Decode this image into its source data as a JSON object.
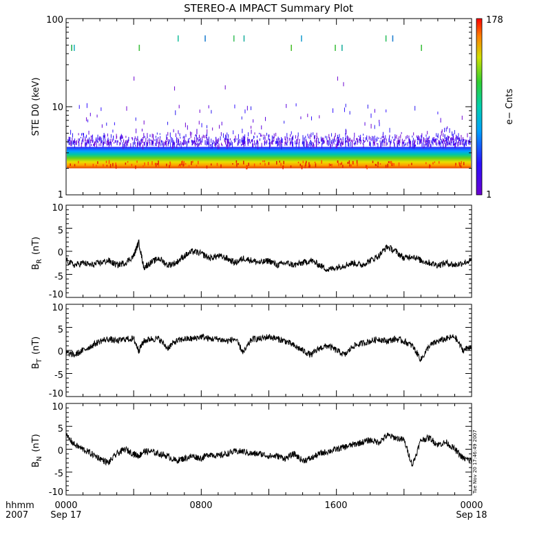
{
  "title": "STEREO-A IMPACT Summary Plot",
  "footer": {
    "format_label": "hhmm",
    "year_label": "2007",
    "stamp": "Tue Nov 20 17:46:49 2007"
  },
  "chart_data": [
    {
      "type": "heatmap",
      "name": "ste-spectrogram",
      "ylabel": "STE D0 (keV)",
      "yscale": "log",
      "ylim": [
        1,
        100
      ],
      "yticks": [
        "1",
        "10",
        "100"
      ],
      "colorbar": {
        "label": "e− Cnts",
        "max_label": "178",
        "min_label": "1",
        "min": 1,
        "max": 178
      },
      "xlim_hours": [
        0,
        24
      ],
      "band_keV": [
        2,
        3.5
      ],
      "sporadic_counts_keV": [
        4,
        11
      ],
      "high_energy_spikes": [
        {
          "hour": 0.3,
          "keV": 47,
          "color": "#20b050"
        },
        {
          "hour": 0.45,
          "keV": 47,
          "color": "#20b0c0"
        },
        {
          "hour": 4.3,
          "keV": 47,
          "color": "#40c040"
        },
        {
          "hour": 6.6,
          "keV": 60,
          "color": "#20c0a0"
        },
        {
          "hour": 8.2,
          "keV": 60,
          "color": "#2080d0"
        },
        {
          "hour": 9.9,
          "keV": 60,
          "color": "#40c060"
        },
        {
          "hour": 10.5,
          "keV": 60,
          "color": "#20b0a0"
        },
        {
          "hour": 13.3,
          "keV": 47,
          "color": "#50c030"
        },
        {
          "hour": 13.9,
          "keV": 60,
          "color": "#20a0d0"
        },
        {
          "hour": 15.9,
          "keV": 47,
          "color": "#40c040"
        },
        {
          "hour": 16.3,
          "keV": 47,
          "color": "#20b0a0"
        },
        {
          "hour": 18.9,
          "keV": 60,
          "color": "#30c060"
        },
        {
          "hour": 19.3,
          "keV": 60,
          "color": "#2080d0"
        },
        {
          "hour": 21.0,
          "keV": 47,
          "color": "#40c040"
        }
      ]
    },
    {
      "type": "line",
      "name": "br-panel",
      "ylabel": "BR (nT)",
      "ylabel_main": "B",
      "ylabel_sub": "R",
      "ylabel_unit": "(nT)",
      "ylim": [
        -10,
        10
      ],
      "yticks": [
        "10",
        "5",
        "0",
        "-5",
        "-10"
      ],
      "x_hours": [
        0,
        0.5,
        1,
        1.5,
        2,
        2.5,
        3,
        3.5,
        4,
        4.3,
        4.6,
        5,
        5.5,
        6,
        6.5,
        7,
        7.5,
        8,
        8.5,
        9,
        9.5,
        10,
        10.5,
        11,
        11.5,
        12,
        12.5,
        13,
        13.5,
        14,
        14.5,
        15,
        15.5,
        16,
        16.5,
        17,
        17.5,
        18,
        18.5,
        19,
        19.5,
        20,
        20.5,
        21,
        21.5,
        22,
        22.5,
        23,
        23.5,
        24
      ],
      "values": [
        -2,
        -3,
        -2.5,
        -3,
        -2.5,
        -2,
        -3,
        -2.5,
        -1,
        2,
        -3.5,
        -2.5,
        -1.5,
        -3,
        -2.5,
        -1,
        0,
        -0.5,
        -1.5,
        -1,
        -1.5,
        -2.5,
        -1.5,
        -2,
        -2.5,
        -2,
        -3,
        -2.5,
        -3,
        -2.5,
        -2,
        -3,
        -4,
        -3.5,
        -3,
        -2.5,
        -3,
        -2,
        -1,
        1,
        0,
        -1.5,
        -1,
        -2,
        -2.5,
        -3,
        -2.5,
        -3,
        -2.5,
        -2
      ]
    },
    {
      "type": "line",
      "name": "bt-panel",
      "ylabel": "BT (nT)",
      "ylabel_main": "B",
      "ylabel_sub": "T",
      "ylabel_unit": "(nT)",
      "ylim": [
        -10,
        10
      ],
      "yticks": [
        "10",
        "5",
        "0",
        "-5",
        "-10"
      ],
      "x_hours": [
        0,
        0.5,
        1,
        1.5,
        2,
        2.5,
        3,
        3.5,
        4,
        4.3,
        4.6,
        5,
        5.5,
        6,
        6.5,
        7,
        7.5,
        8,
        8.5,
        9,
        9.5,
        10,
        10.5,
        11,
        11.5,
        12,
        12.5,
        13,
        13.5,
        14,
        14.5,
        15,
        15.5,
        16,
        16.5,
        17,
        17.5,
        18,
        18.5,
        19,
        19.5,
        20,
        20.5,
        21,
        21.5,
        22,
        22.5,
        23,
        23.5,
        24
      ],
      "values": [
        -0.5,
        -1,
        0,
        1,
        2,
        2.5,
        2,
        2.5,
        2.5,
        0,
        2,
        2.5,
        2.5,
        0.5,
        2,
        2.5,
        2.5,
        3,
        2.5,
        2.5,
        2,
        2.5,
        -0.5,
        2.5,
        2.5,
        3,
        2.5,
        2,
        1,
        0,
        -1,
        0.5,
        1,
        0,
        -1,
        1,
        1.5,
        2,
        2.5,
        2,
        2.5,
        2,
        1,
        -2,
        1,
        2,
        2.5,
        3,
        0,
        1
      ]
    },
    {
      "type": "line",
      "name": "bn-panel",
      "ylabel": "BN (nT)",
      "ylabel_main": "B",
      "ylabel_sub": "N",
      "ylabel_unit": "(nT)",
      "ylim": [
        -10,
        10
      ],
      "yticks": [
        "10",
        "5",
        "0",
        "-5",
        "-10"
      ],
      "x_hours": [
        0,
        0.5,
        1,
        1.5,
        2,
        2.5,
        3,
        3.5,
        4,
        4.3,
        4.6,
        5,
        5.5,
        6,
        6.5,
        7,
        7.5,
        8,
        8.5,
        9,
        9.5,
        10,
        10.5,
        11,
        11.5,
        12,
        12.5,
        13,
        13.5,
        14,
        14.5,
        15,
        15.5,
        16,
        16.5,
        17,
        17.5,
        18,
        18.5,
        19,
        19.5,
        20,
        20.5,
        21,
        21.5,
        22,
        22.5,
        23,
        23.5,
        24
      ],
      "values": [
        3,
        1,
        0,
        -1,
        -2,
        -3,
        -1,
        0,
        -1,
        -1.5,
        -0.5,
        -0.5,
        -1,
        -1.5,
        -2.5,
        -2,
        -1.5,
        -2,
        -1,
        -1.5,
        -1,
        -0.5,
        -0.5,
        -1,
        -1,
        -1.5,
        -1.5,
        -2,
        -1,
        -2.5,
        -2,
        -1,
        -0.5,
        0,
        0.5,
        1,
        1.5,
        2,
        1.5,
        3,
        2.5,
        2,
        -3.5,
        2,
        2.5,
        1,
        1.5,
        0,
        -2,
        -2.5
      ]
    }
  ],
  "x_axis": {
    "tick_labels": [
      "0000",
      "0800",
      "1600",
      "0000"
    ],
    "date_labels": [
      "Sep 17",
      "Sep 18"
    ]
  }
}
